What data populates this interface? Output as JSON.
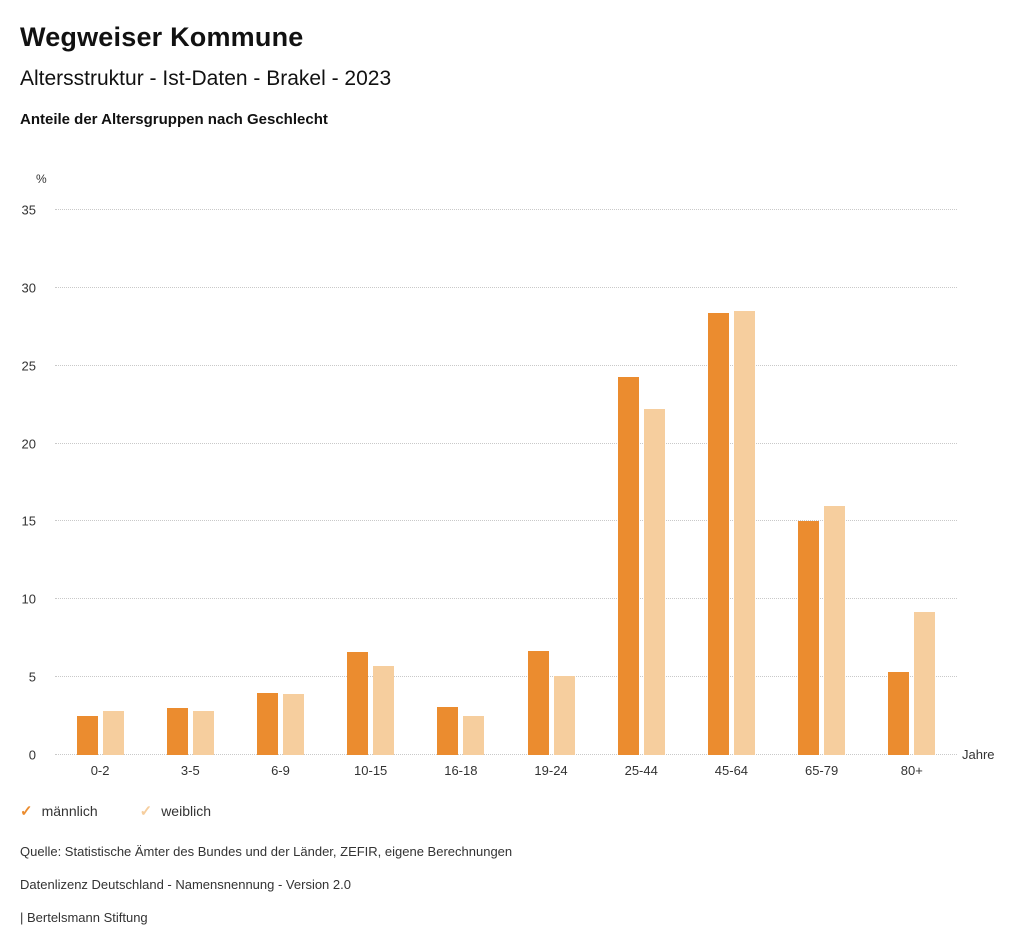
{
  "header": {
    "title": "Wegweiser Kommune",
    "subtitle": "Altersstruktur - Ist-Daten - Brakel - 2023",
    "chart_heading": "Anteile der Altersgruppen nach Geschlecht"
  },
  "chart_data": {
    "type": "bar",
    "title": "Anteile der Altersgruppen nach Geschlecht",
    "categories": [
      "0-2",
      "3-5",
      "6-9",
      "10-15",
      "16-18",
      "19-24",
      "25-44",
      "45-64",
      "65-79",
      "80+"
    ],
    "series": [
      {
        "name": "männlich",
        "color": "#EB8C2F",
        "values": [
          2.5,
          3.0,
          4.0,
          6.6,
          3.1,
          6.7,
          24.3,
          28.4,
          15.0,
          5.3
        ]
      },
      {
        "name": "weiblich",
        "color": "#F6CE9E",
        "values": [
          2.8,
          2.8,
          3.9,
          5.7,
          2.5,
          5.1,
          22.2,
          28.5,
          16.0,
          9.2
        ]
      }
    ],
    "ylabel": "%",
    "xlabel": "Jahre",
    "ylim": [
      0,
      35
    ],
    "ytick_step": 5,
    "grid": true,
    "gridline_color": "#c9c9c9",
    "legend_position": "bottom",
    "legend_icon": "checkmark"
  },
  "footer": {
    "source": "Quelle: Statistische Ämter des Bundes und der Länder, ZEFIR, eigene Berechnungen",
    "license": "Datenlizenz Deutschland - Namensnennung - Version 2.0",
    "attribution": "| Bertelsmann Stiftung"
  }
}
